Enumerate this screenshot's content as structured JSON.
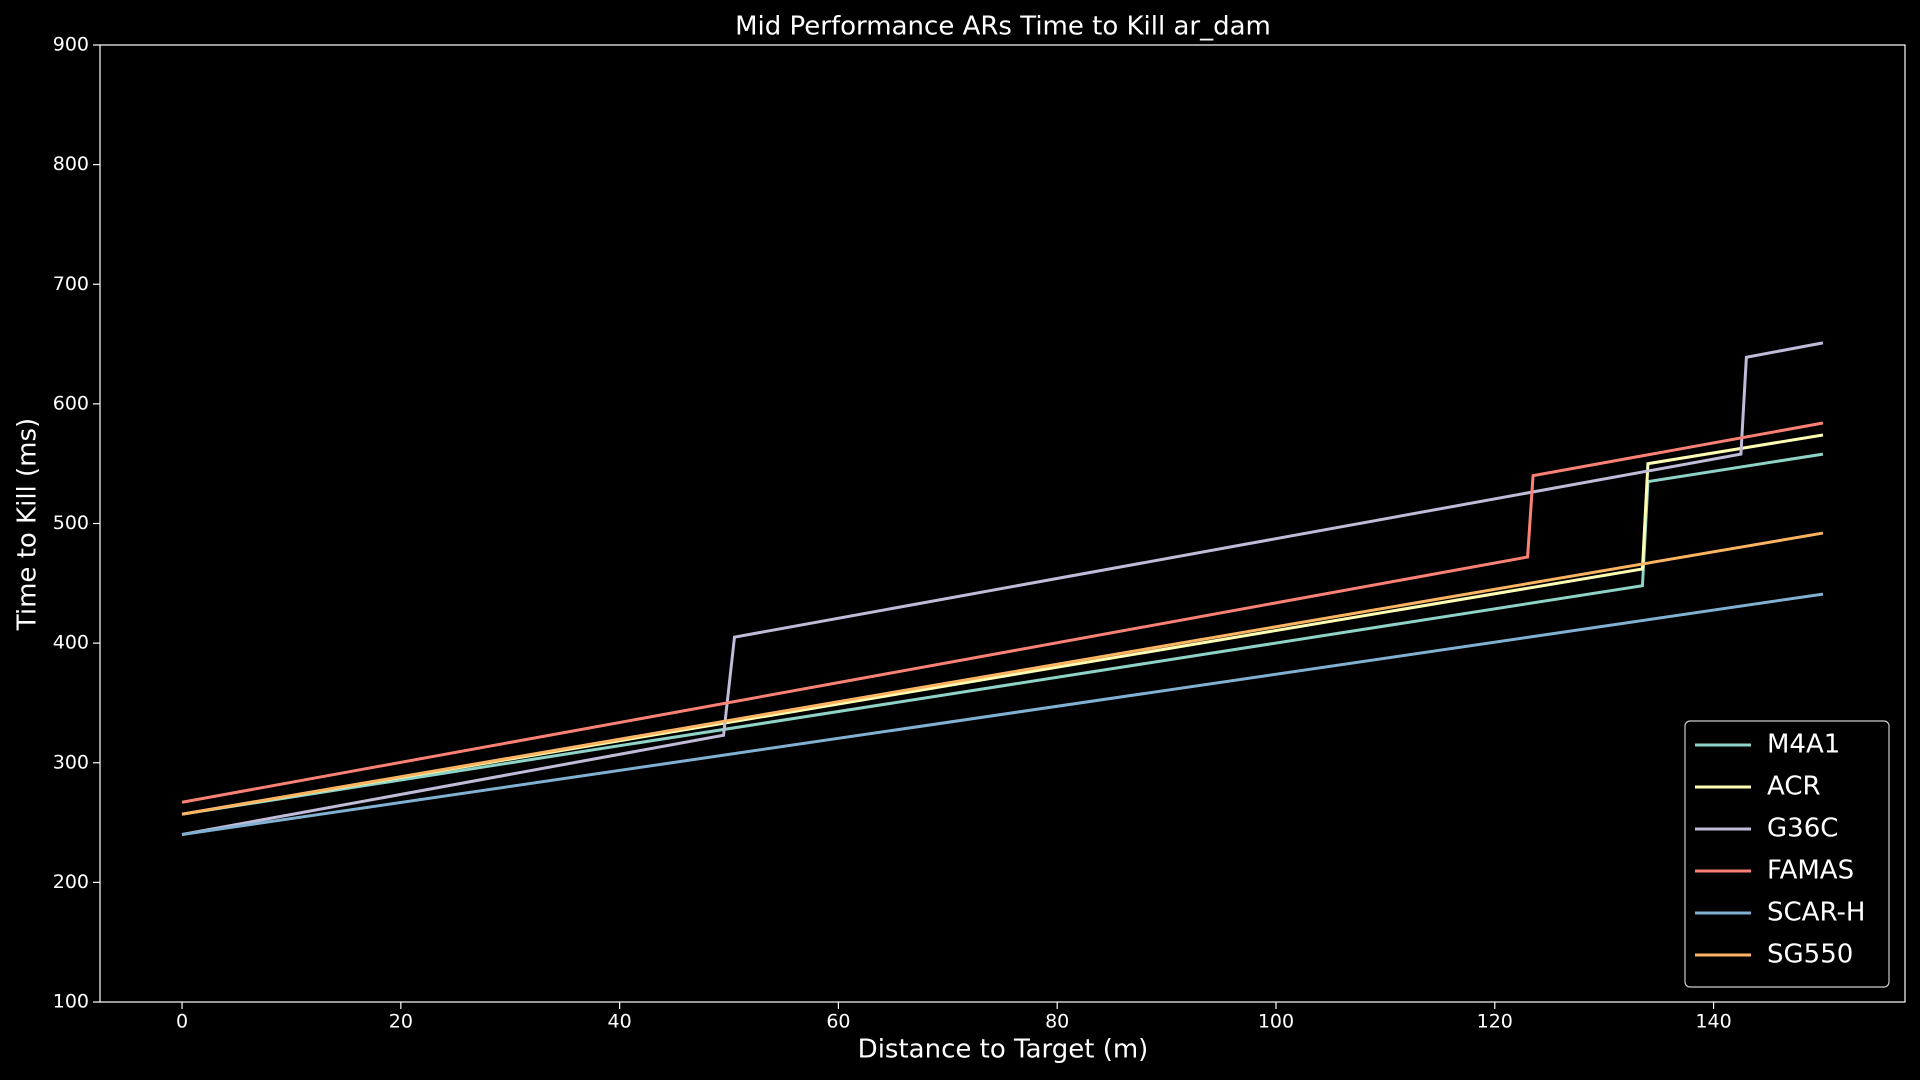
{
  "chart_data": {
    "type": "line",
    "title": "Mid Performance ARs Time to Kill ar_dam",
    "x_label": "Distance to Target (m)",
    "y_label": "Time to Kill (ms)",
    "xlim": [
      -7.5,
      157.5
    ],
    "ylim": [
      100,
      900
    ],
    "xticks": [
      0,
      20,
      40,
      60,
      80,
      100,
      120,
      140
    ],
    "yticks": [
      100,
      200,
      300,
      400,
      500,
      600,
      700,
      800,
      900
    ],
    "legend": "lower right",
    "series": [
      {
        "name": "M4A1",
        "color": "#8dd3c7",
        "x": [
          0,
          133.5,
          134,
          150
        ],
        "values": [
          257,
          448,
          535,
          558
        ]
      },
      {
        "name": "ACR",
        "color": "#feffb3",
        "x": [
          0,
          133.5,
          134,
          150
        ],
        "values": [
          257,
          462,
          550,
          574
        ]
      },
      {
        "name": "G36C",
        "color": "#bfbbd9",
        "x": [
          0,
          49.5,
          50.5,
          142.5,
          143,
          150
        ],
        "values": [
          240,
          323,
          405,
          558,
          639,
          651
        ]
      },
      {
        "name": "FAMAS",
        "color": "#fa8174",
        "x": [
          0,
          123,
          123.5,
          150
        ],
        "values": [
          267,
          472,
          540,
          584
        ]
      },
      {
        "name": "SCAR-H",
        "color": "#81b1d2",
        "x": [
          0,
          150
        ],
        "values": [
          240,
          441
        ]
      },
      {
        "name": "SG550",
        "color": "#fdb462",
        "x": [
          0,
          150
        ],
        "values": [
          257,
          492
        ]
      }
    ]
  }
}
